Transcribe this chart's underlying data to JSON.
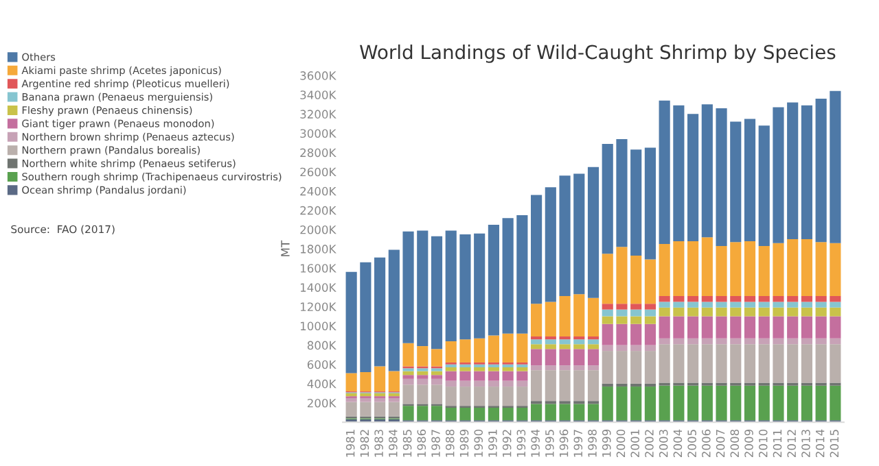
{
  "chart_data": {
    "type": "bar",
    "stacked": true,
    "title": "World Landings of Wild-Caught Shrimp by Species",
    "ylabel": "MT",
    "annotations": [
      "Source:  FAO (2017)"
    ],
    "legend": "left",
    "grid": false,
    "categories": [
      "1981",
      "1982",
      "1983",
      "1984",
      "1985",
      "1986",
      "1987",
      "1988",
      "1989",
      "1990",
      "1991",
      "1992",
      "1993",
      "1994",
      "1995",
      "1996",
      "1997",
      "1998",
      "1999",
      "2000",
      "2001",
      "2002",
      "2003",
      "2004",
      "2005",
      "2006",
      "2007",
      "2008",
      "2009",
      "2010",
      "2011",
      "2012",
      "2013",
      "2014",
      "2015"
    ],
    "ylim": [
      0,
      3600
    ],
    "yticks": [
      {
        "value": 200,
        "label": "200K"
      },
      {
        "value": 400,
        "label": "400K"
      },
      {
        "value": 600,
        "label": "600K"
      },
      {
        "value": 800,
        "label": "800K"
      },
      {
        "value": 1000,
        "label": "1000K"
      },
      {
        "value": 1200,
        "label": "1200K"
      },
      {
        "value": 1400,
        "label": "1400K"
      },
      {
        "value": 1600,
        "label": "1600K"
      },
      {
        "value": 1800,
        "label": "1800K"
      },
      {
        "value": 2000,
        "label": "2000K"
      },
      {
        "value": 2200,
        "label": "2200K"
      },
      {
        "value": 2400,
        "label": "2400K"
      },
      {
        "value": 2600,
        "label": "2600K"
      },
      {
        "value": 2800,
        "label": "2800K"
      },
      {
        "value": 3000,
        "label": "3000K"
      },
      {
        "value": 3200,
        "label": "3200K"
      },
      {
        "value": 3400,
        "label": "3400K"
      },
      {
        "value": 3600,
        "label": "3600K"
      }
    ],
    "series": [
      {
        "name": "Ocean shrimp (Pandalus jordani)",
        "color": "#5b6a85",
        "values": [
          30,
          30,
          30,
          30,
          20,
          20,
          20,
          20,
          20,
          20,
          20,
          20,
          20,
          20,
          20,
          20,
          20,
          20,
          20,
          20,
          20,
          20,
          20,
          20,
          20,
          20,
          20,
          20,
          20,
          20,
          20,
          20,
          20,
          20,
          20
        ]
      },
      {
        "name": "Southern rough shrimp (Trachipenaeus curvirostris)",
        "color": "#59a14f",
        "values": [
          10,
          10,
          10,
          10,
          150,
          150,
          150,
          130,
          130,
          130,
          130,
          130,
          130,
          170,
          170,
          170,
          170,
          170,
          350,
          350,
          350,
          350,
          360,
          360,
          360,
          360,
          360,
          360,
          360,
          360,
          360,
          360,
          360,
          360,
          360
        ]
      },
      {
        "name": "Northern white shrimp (Penaeus setiferus)",
        "color": "#6f7470",
        "values": [
          20,
          20,
          20,
          20,
          20,
          20,
          20,
          20,
          20,
          20,
          20,
          20,
          20,
          30,
          30,
          30,
          30,
          30,
          30,
          30,
          30,
          30,
          30,
          30,
          30,
          30,
          30,
          30,
          30,
          30,
          30,
          30,
          30,
          30,
          30
        ]
      },
      {
        "name": "Northern prawn (Pandalus borealis)",
        "color": "#bab0ac",
        "values": [
          150,
          150,
          150,
          150,
          200,
          200,
          200,
          200,
          200,
          200,
          200,
          200,
          200,
          320,
          320,
          320,
          320,
          320,
          340,
          340,
          340,
          340,
          400,
          400,
          400,
          400,
          400,
          400,
          400,
          400,
          400,
          400,
          400,
          400,
          400
        ]
      },
      {
        "name": "Northern brown shrimp (Penaeus aztecus)",
        "color": "#c7a2b6",
        "values": [
          40,
          40,
          40,
          40,
          60,
          60,
          60,
          60,
          60,
          60,
          60,
          60,
          60,
          50,
          50,
          50,
          50,
          50,
          60,
          60,
          60,
          60,
          60,
          60,
          60,
          60,
          60,
          60,
          60,
          60,
          60,
          60,
          60,
          60,
          60
        ]
      },
      {
        "name": "Giant tiger prawn (Penaeus monodon)",
        "color": "#c46f9e",
        "values": [
          20,
          20,
          20,
          20,
          40,
          40,
          40,
          100,
          100,
          100,
          100,
          100,
          100,
          170,
          170,
          170,
          170,
          170,
          220,
          220,
          220,
          220,
          230,
          230,
          230,
          230,
          230,
          230,
          230,
          230,
          230,
          230,
          230,
          230,
          230
        ]
      },
      {
        "name": "Fleshy prawn (Penaeus chinensis)",
        "color": "#c9c24a",
        "values": [
          30,
          30,
          30,
          30,
          40,
          40,
          40,
          40,
          40,
          40,
          40,
          40,
          40,
          50,
          50,
          50,
          50,
          50,
          80,
          80,
          80,
          80,
          90,
          90,
          90,
          90,
          90,
          90,
          90,
          90,
          90,
          90,
          90,
          90,
          90
        ]
      },
      {
        "name": "Banana prawn (Penaeus merguiensis)",
        "color": "#86c5d0",
        "values": [
          10,
          10,
          10,
          10,
          30,
          30,
          30,
          30,
          30,
          30,
          30,
          30,
          30,
          50,
          50,
          50,
          50,
          50,
          70,
          70,
          70,
          70,
          60,
          60,
          60,
          60,
          60,
          60,
          60,
          60,
          60,
          60,
          60,
          60,
          60
        ]
      },
      {
        "name": "Argentine red shrimp (Pleoticus muelleri)",
        "color": "#e15759",
        "values": [
          10,
          10,
          10,
          10,
          20,
          20,
          20,
          20,
          20,
          20,
          20,
          20,
          20,
          30,
          30,
          30,
          30,
          30,
          60,
          60,
          60,
          60,
          60,
          60,
          60,
          60,
          60,
          60,
          60,
          60,
          60,
          60,
          60,
          60,
          60
        ]
      },
      {
        "name": "Akiami paste shrimp (Acetes japonicus)",
        "color": "#f5a93a",
        "values": [
          190,
          200,
          260,
          210,
          240,
          210,
          180,
          220,
          240,
          250,
          280,
          300,
          300,
          340,
          360,
          420,
          440,
          400,
          520,
          590,
          500,
          460,
          540,
          570,
          570,
          610,
          520,
          560,
          570,
          520,
          550,
          590,
          590,
          560,
          550
        ]
      },
      {
        "name": "Others",
        "color": "#4e79a7",
        "values": [
          1050,
          1140,
          1130,
          1260,
          1160,
          1200,
          1170,
          1150,
          1090,
          1090,
          1150,
          1200,
          1230,
          1130,
          1190,
          1250,
          1250,
          1360,
          1140,
          1120,
          1100,
          1160,
          1490,
          1410,
          1320,
          1380,
          1430,
          1250,
          1270,
          1250,
          1410,
          1420,
          1390,
          1490,
          1580
        ]
      }
    ]
  }
}
